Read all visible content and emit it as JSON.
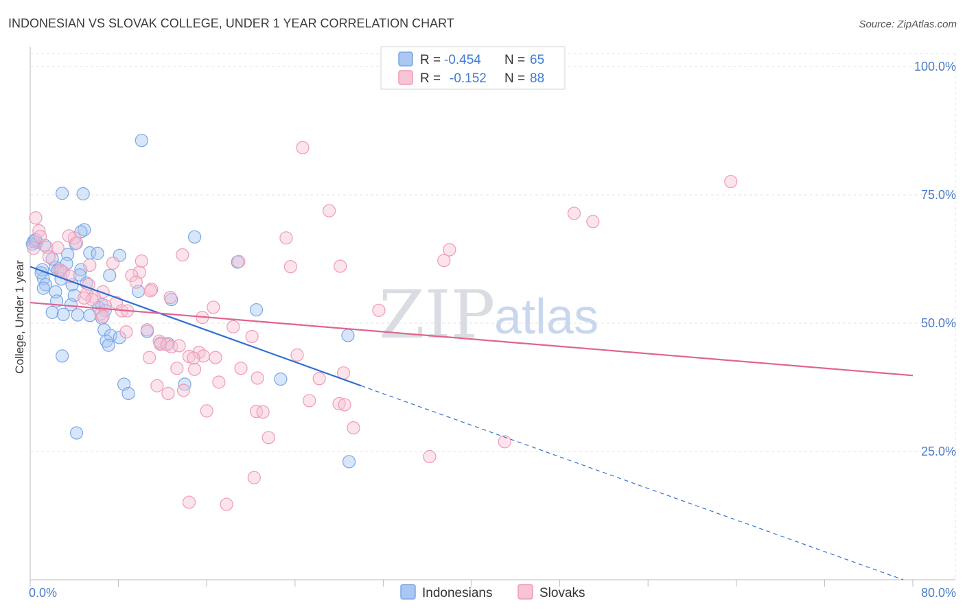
{
  "chart_data": {
    "type": "scatter",
    "title": "INDONESIAN VS SLOVAK COLLEGE, UNDER 1 YEAR CORRELATION CHART",
    "source": "Source: ZipAtlas.com",
    "xlabel": "",
    "ylabel": "College, Under 1 year",
    "xlim": [
      0,
      80
    ],
    "ylim": [
      0,
      100
    ],
    "x_tick_labels": [
      "0.0%",
      "80.0%"
    ],
    "y_ticks": [
      {
        "value": 25,
        "label": "25.0%"
      },
      {
        "value": 50,
        "label": "50.0%"
      },
      {
        "value": 75,
        "label": "75.0%"
      },
      {
        "value": 100,
        "label": "100.0%"
      }
    ],
    "grid": true,
    "legend": {
      "position": "top-center",
      "entries": [
        {
          "r_label": "R =",
          "r_value": "-0.454",
          "n_label": "N =",
          "n_value": "65"
        },
        {
          "r_label": "R =",
          "r_value": "-0.152",
          "n_label": "N =",
          "n_value": "88"
        }
      ]
    },
    "watermark": {
      "zip": "ZIP",
      "atlas": "atlas"
    },
    "series": [
      {
        "name": "Indonesians",
        "color": "#7aa6e6",
        "fill": "#a9c7f1",
        "line_color": "#2f6fd3",
        "trend": {
          "x0": 0,
          "y0": 61.0,
          "x1": 30,
          "y1": 37.8,
          "dash_to_x": 80,
          "dash_to_y": 0
        },
        "points": [
          [
            10.1,
            85.6
          ],
          [
            2.9,
            75.3
          ],
          [
            4.8,
            75.2
          ],
          [
            4.9,
            68.2
          ],
          [
            4.6,
            67.8
          ],
          [
            14.9,
            66.8
          ],
          [
            0.4,
            66.1
          ],
          [
            0.6,
            65.7
          ],
          [
            0.2,
            65.4
          ],
          [
            1.3,
            65.2
          ],
          [
            4.1,
            65.5
          ],
          [
            3.4,
            63.4
          ],
          [
            5.4,
            63.7
          ],
          [
            6.1,
            63.6
          ],
          [
            8.1,
            63.2
          ],
          [
            18.8,
            61.9
          ],
          [
            3.3,
            61.6
          ],
          [
            2.3,
            60.9
          ],
          [
            1.1,
            60.4
          ],
          [
            2.5,
            60.2
          ],
          [
            4.6,
            60.4
          ],
          [
            2.8,
            60.2
          ],
          [
            4.5,
            59.4
          ],
          [
            7.2,
            59.3
          ],
          [
            1.2,
            58.7
          ],
          [
            2.8,
            58.6
          ],
          [
            5.1,
            57.8
          ],
          [
            3.8,
            57.5
          ],
          [
            1.4,
            57.5
          ],
          [
            1.2,
            56.8
          ],
          [
            2.3,
            56.1
          ],
          [
            4.0,
            55.4
          ],
          [
            9.8,
            56.2
          ],
          [
            12.8,
            54.6
          ],
          [
            2.4,
            54.3
          ],
          [
            3.7,
            53.6
          ],
          [
            6.5,
            53.6
          ],
          [
            6.2,
            53.0
          ],
          [
            20.5,
            52.6
          ],
          [
            2.0,
            52.1
          ],
          [
            3.0,
            51.7
          ],
          [
            4.3,
            51.6
          ],
          [
            5.4,
            51.5
          ],
          [
            6.5,
            51.0
          ],
          [
            12.5,
            46.0
          ],
          [
            6.7,
            48.7
          ],
          [
            10.6,
            48.4
          ],
          [
            7.3,
            47.6
          ],
          [
            28.8,
            47.6
          ],
          [
            8.1,
            47.2
          ],
          [
            6.9,
            46.5
          ],
          [
            7.1,
            45.7
          ],
          [
            2.9,
            43.6
          ],
          [
            22.7,
            39.1
          ],
          [
            8.5,
            38.1
          ],
          [
            14.0,
            38.1
          ],
          [
            8.9,
            36.3
          ],
          [
            4.2,
            28.6
          ],
          [
            28.9,
            23.0
          ],
          [
            0.3,
            65.9
          ],
          [
            0.5,
            66.3
          ],
          [
            2.0,
            62.5
          ],
          [
            6.8,
            52.5
          ],
          [
            11.8,
            46.1
          ],
          [
            1.0,
            59.8
          ]
        ]
      },
      {
        "name": "Slovaks",
        "color": "#ee9ab5",
        "fill": "#f6c4d4",
        "line_color": "#e0638f",
        "trend": {
          "x0": 0,
          "y0": 54.0,
          "x1": 80,
          "y1": 39.8
        },
        "points": [
          [
            24.7,
            84.2
          ],
          [
            63.5,
            77.6
          ],
          [
            27.1,
            71.9
          ],
          [
            49.3,
            71.4
          ],
          [
            51.0,
            69.8
          ],
          [
            0.5,
            70.5
          ],
          [
            0.8,
            68.0
          ],
          [
            0.9,
            66.9
          ],
          [
            4.0,
            66.6
          ],
          [
            3.5,
            67.0
          ],
          [
            23.2,
            66.6
          ],
          [
            4.2,
            65.6
          ],
          [
            1.5,
            64.8
          ],
          [
            2.5,
            64.7
          ],
          [
            38.0,
            64.3
          ],
          [
            13.8,
            63.3
          ],
          [
            1.7,
            62.9
          ],
          [
            10.1,
            62.1
          ],
          [
            18.9,
            62.0
          ],
          [
            37.5,
            62.2
          ],
          [
            7.5,
            61.7
          ],
          [
            5.4,
            61.3
          ],
          [
            28.1,
            61.1
          ],
          [
            23.6,
            61.0
          ],
          [
            2.7,
            60.4
          ],
          [
            3.0,
            59.9
          ],
          [
            9.9,
            59.9
          ],
          [
            9.2,
            59.3
          ],
          [
            3.6,
            59.1
          ],
          [
            9.6,
            58.0
          ],
          [
            5.3,
            57.5
          ],
          [
            11.0,
            56.6
          ],
          [
            10.9,
            56.3
          ],
          [
            6.6,
            56.1
          ],
          [
            5.1,
            55.7
          ],
          [
            5.8,
            55.1
          ],
          [
            12.7,
            55.0
          ],
          [
            5.6,
            54.6
          ],
          [
            7.8,
            54.0
          ],
          [
            6.8,
            53.4
          ],
          [
            16.6,
            53.1
          ],
          [
            31.6,
            52.5
          ],
          [
            8.3,
            52.4
          ],
          [
            8.8,
            52.4
          ],
          [
            6.4,
            51.8
          ],
          [
            6.6,
            51.3
          ],
          [
            15.6,
            51.1
          ],
          [
            18.4,
            49.3
          ],
          [
            10.6,
            48.7
          ],
          [
            8.7,
            48.3
          ],
          [
            20.1,
            47.4
          ],
          [
            11.7,
            46.5
          ],
          [
            11.8,
            45.9
          ],
          [
            12.4,
            45.8
          ],
          [
            12.8,
            45.4
          ],
          [
            13.5,
            45.6
          ],
          [
            15.3,
            44.3
          ],
          [
            24.2,
            43.8
          ],
          [
            15.7,
            43.6
          ],
          [
            14.4,
            43.5
          ],
          [
            16.8,
            43.3
          ],
          [
            10.8,
            43.3
          ],
          [
            14.8,
            43.2
          ],
          [
            19.1,
            41.2
          ],
          [
            13.3,
            41.2
          ],
          [
            14.9,
            41.0
          ],
          [
            28.4,
            40.3
          ],
          [
            20.6,
            39.3
          ],
          [
            26.2,
            39.2
          ],
          [
            17.1,
            38.5
          ],
          [
            11.5,
            37.8
          ],
          [
            13.9,
            36.9
          ],
          [
            12.5,
            36.3
          ],
          [
            25.3,
            34.9
          ],
          [
            28.0,
            34.3
          ],
          [
            28.5,
            34.1
          ],
          [
            20.5,
            32.8
          ],
          [
            21.1,
            32.7
          ],
          [
            16.0,
            32.9
          ],
          [
            29.3,
            29.6
          ],
          [
            21.6,
            27.7
          ],
          [
            43.0,
            26.9
          ],
          [
            36.2,
            24.0
          ],
          [
            20.3,
            19.9
          ],
          [
            14.4,
            15.1
          ],
          [
            17.8,
            14.7
          ],
          [
            0.3,
            64.6
          ],
          [
            4.9,
            54.9
          ]
        ]
      }
    ]
  }
}
